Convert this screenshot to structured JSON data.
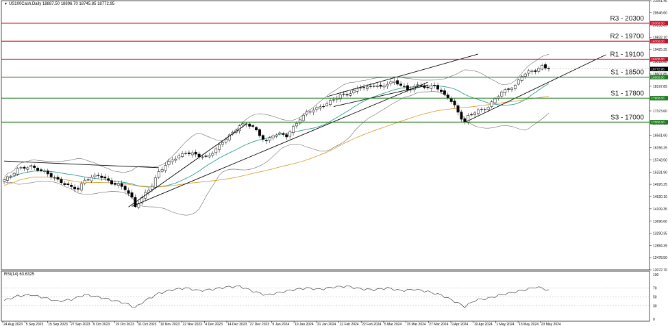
{
  "chart_data": [
    {
      "type": "candlestick",
      "title": "US100Cash,Daily",
      "ohlc_text": {
        "open": "18887.50",
        "high": "18896.70",
        "low": "18745.85",
        "close": "18772.95"
      },
      "x_tick_labels": [
        "24 Aug 2023",
        "5 Sep 2023",
        "15 Sep 2023",
        "27 Sep 2023",
        "9 Oct 2023",
        "19 Oct 2023",
        "31 Oct 2023",
        "10 Nov 2023",
        "22 Nov 2023",
        "4 Dec 2023",
        "14 Dec 2023",
        "27 Dec 2023",
        "9 Jan 2024",
        "19 Jan 2024",
        "31 Jan 2024",
        "12 Feb 2024",
        "22 Feb 2024",
        "5 Mar 2024",
        "15 Mar 2024",
        "27 Mar 2024",
        "9 Apr 2024",
        "19 Apr 2024",
        "1 May 2024",
        "13 May 2024",
        "23 May 2024"
      ],
      "y_tick_labels": [
        "21051.40",
        "20646.60",
        "20238.85",
        "19832.10",
        "19425.35",
        "19018.60",
        "18607.85",
        "18197.85",
        "17784.35",
        "17373.60",
        "16967.10",
        "16561.60",
        "16156.25",
        "15743.50",
        "15331.90",
        "14926.25",
        "14520.10",
        "14109.35",
        "13696.60",
        "13290.35",
        "12884.35",
        "12478.50",
        "12072.70"
      ],
      "ylim": [
        12072.7,
        21051.4
      ],
      "last_price_tag": "18772.95",
      "levels": [
        {
          "label": "R3 - 20300",
          "value": 20300,
          "tag": "20300.00",
          "color": "#c0162c"
        },
        {
          "label": "R2 - 19700",
          "value": 19700,
          "tag": "19700.00",
          "color": "#c0162c"
        },
        {
          "label": "R1 - 19100",
          "value": 19100,
          "tag": "19100.00",
          "color": "#c0162c"
        },
        {
          "label": "S1 - 18500",
          "value": 18500,
          "tag": "18500.00",
          "color": "#1e7d1e"
        },
        {
          "label": "S1 - 17800",
          "value": 17800,
          "tag": "17800.00",
          "color": "#1e7d1e"
        },
        {
          "label": "S3 - 17000",
          "value": 17000,
          "tag": "17000.00",
          "color": "#1e7d1e"
        }
      ],
      "close_path": [
        [
          0,
          15080
        ],
        [
          2,
          15210
        ],
        [
          4,
          15440
        ],
        [
          6,
          15480
        ],
        [
          8,
          15520
        ],
        [
          10,
          15420
        ],
        [
          12,
          15340
        ],
        [
          14,
          15210
        ],
        [
          16,
          15060
        ],
        [
          18,
          14940
        ],
        [
          20,
          14830
        ],
        [
          22,
          14770
        ],
        [
          24,
          15060
        ],
        [
          26,
          15150
        ],
        [
          28,
          15240
        ],
        [
          30,
          15110
        ],
        [
          32,
          14960
        ],
        [
          34,
          14910
        ],
        [
          36,
          14780
        ],
        [
          38,
          14460
        ],
        [
          39,
          14190
        ],
        [
          40,
          14300
        ],
        [
          42,
          14630
        ],
        [
          44,
          14880
        ],
        [
          46,
          15340
        ],
        [
          48,
          15560
        ],
        [
          50,
          15750
        ],
        [
          52,
          15860
        ],
        [
          54,
          15980
        ],
        [
          56,
          15950
        ],
        [
          58,
          15880
        ],
        [
          60,
          15820
        ],
        [
          62,
          15990
        ],
        [
          64,
          16220
        ],
        [
          66,
          16460
        ],
        [
          68,
          16640
        ],
        [
          70,
          16890
        ],
        [
          72,
          16940
        ],
        [
          74,
          16850
        ],
        [
          76,
          16560
        ],
        [
          78,
          16350
        ],
        [
          80,
          16570
        ],
        [
          82,
          16610
        ],
        [
          84,
          16540
        ],
        [
          86,
          16820
        ],
        [
          88,
          17110
        ],
        [
          90,
          17320
        ],
        [
          92,
          17420
        ],
        [
          94,
          17500
        ],
        [
          96,
          17620
        ],
        [
          98,
          17750
        ],
        [
          100,
          17900
        ],
        [
          102,
          17920
        ],
        [
          104,
          18030
        ],
        [
          106,
          18180
        ],
        [
          108,
          18140
        ],
        [
          110,
          18240
        ],
        [
          112,
          18160
        ],
        [
          114,
          18290
        ],
        [
          116,
          18350
        ],
        [
          118,
          18240
        ],
        [
          120,
          18080
        ],
        [
          122,
          18190
        ],
        [
          124,
          18230
        ],
        [
          126,
          18130
        ],
        [
          128,
          18250
        ],
        [
          130,
          17990
        ],
        [
          132,
          17830
        ],
        [
          134,
          17540
        ],
        [
          136,
          17130
        ],
        [
          137,
          16990
        ],
        [
          138,
          17200
        ],
        [
          140,
          17330
        ],
        [
          142,
          17420
        ],
        [
          144,
          17500
        ],
        [
          146,
          17780
        ],
        [
          148,
          18000
        ],
        [
          150,
          18110
        ],
        [
          152,
          18210
        ],
        [
          154,
          18560
        ],
        [
          156,
          18680
        ],
        [
          158,
          18720
        ],
        [
          160,
          18860
        ],
        [
          162,
          18770
        ]
      ],
      "indicators": [
        {
          "type": "moving_average",
          "color": "#2e9c8e"
        },
        {
          "type": "moving_average",
          "color": "#d9a236"
        },
        {
          "type": "bollinger_bands",
          "color": "#6a6a6a"
        }
      ]
    },
    {
      "type": "line",
      "title": "RSI(14) 63.6325",
      "y_tick_labels": [
        "100",
        "70",
        "50",
        "30",
        "0"
      ],
      "ylim": [
        0,
        100
      ],
      "levels": [
        70,
        50,
        30
      ],
      "values": [
        [
          0,
          42
        ],
        [
          4,
          52
        ],
        [
          8,
          55
        ],
        [
          12,
          48
        ],
        [
          16,
          40
        ],
        [
          20,
          44
        ],
        [
          24,
          55
        ],
        [
          28,
          50
        ],
        [
          32,
          43
        ],
        [
          36,
          36
        ],
        [
          39,
          26
        ],
        [
          42,
          42
        ],
        [
          46,
          58
        ],
        [
          50,
          66
        ],
        [
          54,
          70
        ],
        [
          58,
          64
        ],
        [
          62,
          67
        ],
        [
          66,
          72
        ],
        [
          70,
          74
        ],
        [
          74,
          63
        ],
        [
          78,
          54
        ],
        [
          82,
          60
        ],
        [
          86,
          66
        ],
        [
          90,
          70
        ],
        [
          94,
          67
        ],
        [
          98,
          72
        ],
        [
          102,
          74
        ],
        [
          106,
          68
        ],
        [
          110,
          66
        ],
        [
          114,
          70
        ],
        [
          118,
          64
        ],
        [
          122,
          67
        ],
        [
          126,
          62
        ],
        [
          130,
          54
        ],
        [
          134,
          40
        ],
        [
          137,
          28
        ],
        [
          140,
          42
        ],
        [
          144,
          47
        ],
        [
          148,
          55
        ],
        [
          152,
          61
        ],
        [
          156,
          68
        ],
        [
          158,
          72
        ],
        [
          160,
          70
        ],
        [
          162,
          64
        ]
      ]
    }
  ]
}
